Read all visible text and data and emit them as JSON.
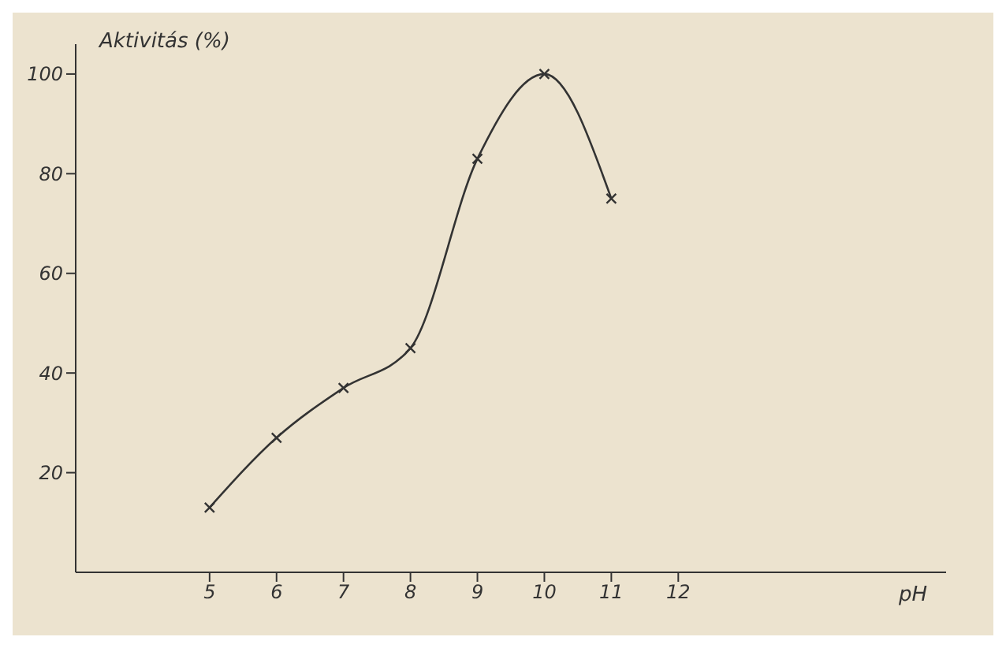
{
  "chart_data": {
    "type": "line",
    "xlabel": "pH",
    "ylabel": "Aktivitás (%)",
    "x": [
      5,
      6,
      7,
      8,
      9,
      10,
      11
    ],
    "series": [
      {
        "color": "#333333",
        "values": [
          13,
          27,
          37,
          45,
          83,
          100,
          75
        ]
      }
    ],
    "xlim": [
      3,
      16
    ],
    "xticks": [
      5,
      6,
      7,
      8,
      9,
      10,
      11,
      12
    ],
    "ylim": [
      0,
      106
    ],
    "yticks": [
      20,
      40,
      60,
      80,
      100
    ],
    "grid": false,
    "legend": false,
    "marker": "cross",
    "line_style": "solid"
  }
}
